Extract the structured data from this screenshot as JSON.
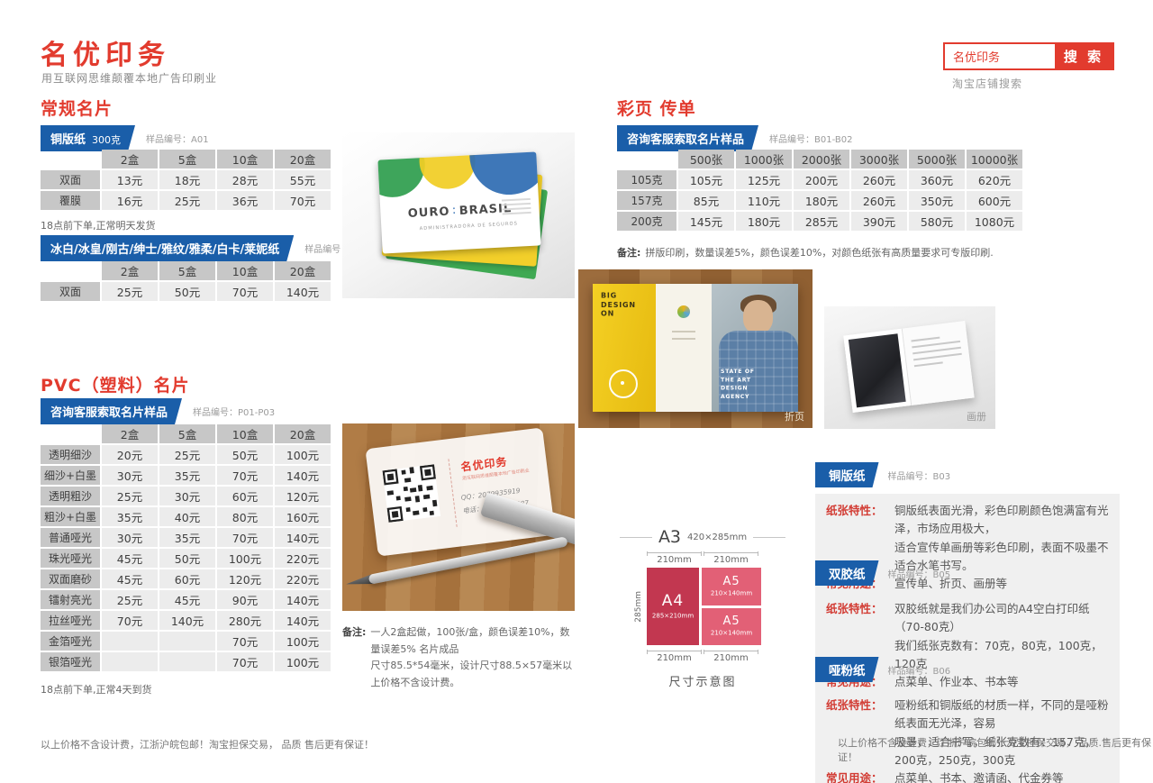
{
  "header": {
    "logo": "名优印务",
    "tagline": "用互联网思维颠覆本地广告印刷业",
    "search": {
      "query": "名优印务",
      "button": "搜 索",
      "hint": "淘宝店铺搜索"
    }
  },
  "left": {
    "section1_title": "常规名片",
    "badge1_label": "铜版纸",
    "badge1_weight": "300克",
    "badge1_sample": "样品编号：A01",
    "table1": {
      "header": [
        "",
        "2盒",
        "5盒",
        "10盒",
        "20盒"
      ],
      "rows": [
        [
          "双面",
          "13元",
          "18元",
          "28元",
          "55元"
        ],
        [
          "覆膜",
          "16元",
          "25元",
          "36元",
          "70元"
        ]
      ]
    },
    "note1": "18点前下单,正常明天发货",
    "badge2_label": "冰白/冰皇/刚古/绅士/雅纹/雅柔/白卡/莱妮纸",
    "badge2_sample": "样品编号：A02-A09",
    "table2": {
      "header": [
        "",
        "2盒",
        "5盒",
        "10盒",
        "20盒"
      ],
      "rows": [
        [
          "双面",
          "25元",
          "50元",
          "70元",
          "140元"
        ]
      ]
    },
    "section2_title": "PVC（塑料）名片",
    "badge3_label": "咨询客服索取名片样品",
    "badge3_sample": "样品编号：P01-P03",
    "table3": {
      "header": [
        "",
        "2盒",
        "5盒",
        "10盒",
        "20盒"
      ],
      "rows": [
        [
          "透明细沙",
          "20元",
          "25元",
          "50元",
          "100元"
        ],
        [
          "细沙+白墨",
          "30元",
          "35元",
          "70元",
          "140元"
        ],
        [
          "透明粗沙",
          "25元",
          "30元",
          "60元",
          "120元"
        ],
        [
          "粗沙+白墨",
          "35元",
          "40元",
          "80元",
          "160元"
        ],
        [
          "普通哑光",
          "30元",
          "35元",
          "70元",
          "140元"
        ],
        [
          "珠光哑光",
          "45元",
          "50元",
          "100元",
          "220元"
        ],
        [
          "双面磨砂",
          "45元",
          "60元",
          "120元",
          "220元"
        ],
        [
          "镭射亮光",
          "25元",
          "45元",
          "90元",
          "140元"
        ],
        [
          "拉丝哑光",
          "70元",
          "140元",
          "280元",
          "140元"
        ],
        [
          "金箔哑光",
          "",
          "",
          "70元",
          "100元"
        ],
        [
          "银箔哑光",
          "",
          "",
          "70元",
          "100元"
        ]
      ]
    },
    "note2": "18点前下单,正常4天到货",
    "footer": "以上价格不含设计费，江浙沪皖包邮！淘宝担保交易， 品质 售后更有保证！"
  },
  "middle": {
    "business_card": {
      "brand_left": "OURO",
      "brand_divider": "∶",
      "brand_right": "BRASIL",
      "brand_sub": "ADMINISTRADORA DE SEGUROS"
    },
    "pvc_card": {
      "logo": "名优印务",
      "logo_sub": "用互联网思维颠覆本地广告印刷业",
      "qq": "QQ：2079935919",
      "tel": "电话：15658517087"
    },
    "note_label": "备注:",
    "note_line1": "一人2盒起做，100张/盒，颜色误差10%，数量误差5% 名片成品",
    "note_line2": "尺寸85.5*54毫米，设计尺寸88.5×57毫米以上价格不含设计费。"
  },
  "right": {
    "title": "彩页 传单",
    "badge_label": "咨询客服索取名片样品",
    "badge_sample": "样品编号：B01-B02",
    "table": {
      "header": [
        "",
        "500张",
        "1000张",
        "2000张",
        "3000张",
        "5000张",
        "10000张"
      ],
      "rows": [
        [
          "105克",
          "105元",
          "125元",
          "200元",
          "260元",
          "360元",
          "620元"
        ],
        [
          "157克",
          "85元",
          "110元",
          "180元",
          "260元",
          "350元",
          "600元"
        ],
        [
          "200克",
          "145元",
          "180元",
          "285元",
          "390元",
          "580元",
          "1080元"
        ]
      ]
    },
    "note_label": "备注:",
    "note": "拼版印刷，数量误差5%，颜色误差10%，对颜色纸张有高质量要求可专版印刷.",
    "trifold": {
      "caption": "折页",
      "panel_text": "BIG DESIGN ON",
      "photo_text": "STATE OF THE ART DESIGN AGENCY"
    },
    "booklet": {
      "caption": "画册"
    },
    "size_diagram": {
      "a3_label": "A3",
      "a3_size": "420×285mm",
      "top_left": "210mm",
      "top_right": "210mm",
      "a4_label": "A4",
      "a4_size": "285×210mm",
      "a5_label": "A5",
      "a5_size": "210×140mm",
      "left_dim": "285mm",
      "bottom_left": "210mm",
      "bottom_right": "210mm",
      "caption": "尺寸示意图"
    },
    "labels": {
      "feature": "纸张特性：",
      "usage": "常见用途："
    },
    "papers": [
      {
        "name": "铜版纸",
        "sample": "样品编号：B03",
        "feature1": "铜版纸表面光滑，彩色印刷颜色饱满富有光泽，市场应用极大，",
        "feature2": "适合宣传单画册等彩色印刷，表面不吸墨不适合水笔书写。",
        "usage": "宣传单、折页、画册等"
      },
      {
        "name": "双胶纸",
        "sample": "样品编号：B05",
        "feature1": "双胶纸就是我们办公司的A4空白打印纸（70-80克）",
        "feature2": "我们纸张克数有：70克，80克，100克，120克",
        "usage": "点菜单、作业本、书本等"
      },
      {
        "name": "哑粉纸",
        "sample": "样品编号：B06",
        "feature1": "哑粉纸和铜版纸的材质一样，不同的是哑粉纸表面无光泽，容易",
        "feature2": "吸墨，适合书写，纸张克数有：157克，200克，250克，300克",
        "usage": "点菜单、书本、邀请函、代金券等"
      }
    ],
    "footer": "以上价格不含设计费，江浙沪皖包邮！淘宝担保交易， 品质.售后更有保证！"
  },
  "colors": {
    "accent_red": "#e23b2e",
    "badge_blue": "#1a5ea9",
    "a4_red": "#c23750",
    "a5_pink": "#e26076"
  }
}
